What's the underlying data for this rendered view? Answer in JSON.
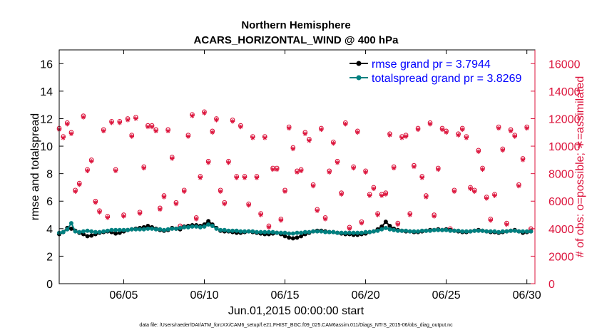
{
  "chart_data": {
    "type": "line",
    "title": "Northern Hemisphere",
    "subtitle": "ACARS_HORIZONTAL_WIND @ 400 hPa",
    "xlabel": "Jun.01,2015 00:00:00 start",
    "ylabel": "rmse and totalspread",
    "y2label": "# of obs: o=possible; ∗=assimilated",
    "xlim": [
      1,
      30.5
    ],
    "ylim": [
      0,
      17
    ],
    "y2lim": [
      0,
      17000
    ],
    "yticks": [
      "0",
      "2",
      "4",
      "6",
      "8",
      "10",
      "12",
      "14",
      "16"
    ],
    "y2ticks": [
      "0",
      "2000",
      "4000",
      "6000",
      "8000",
      "10000",
      "12000",
      "14000",
      "16000"
    ],
    "xticks": [
      {
        "label": "06/05",
        "day": 5
      },
      {
        "label": "06/10",
        "day": 10
      },
      {
        "label": "06/15",
        "day": 15
      },
      {
        "label": "06/20",
        "day": 20
      },
      {
        "label": "06/25",
        "day": 25
      },
      {
        "label": "06/30",
        "day": 30
      }
    ],
    "legend_position": "top-right",
    "series": [
      {
        "name": "rmse grand pr = 3.7944",
        "color": "#000000",
        "axis": "left",
        "marker": "dot",
        "x_start": 1,
        "x_step": 0.25,
        "values": [
          3.6,
          3.75,
          4.05,
          4.0,
          3.85,
          3.7,
          3.6,
          3.45,
          3.5,
          3.6,
          3.7,
          3.75,
          3.8,
          3.75,
          3.65,
          3.7,
          3.8,
          3.9,
          3.95,
          4.0,
          4.05,
          4.1,
          4.2,
          4.1,
          4.0,
          3.9,
          3.85,
          3.9,
          4.05,
          4.0,
          3.95,
          4.15,
          4.2,
          4.25,
          4.25,
          4.2,
          4.3,
          4.55,
          4.3,
          4.05,
          3.85,
          3.8,
          3.8,
          3.75,
          3.7,
          3.7,
          3.75,
          3.8,
          3.75,
          3.7,
          3.65,
          3.6,
          3.6,
          3.65,
          3.7,
          3.6,
          3.45,
          3.35,
          3.3,
          3.35,
          3.45,
          3.6,
          3.7,
          3.8,
          3.85,
          3.85,
          3.8,
          3.75,
          3.75,
          3.7,
          3.65,
          3.6,
          3.6,
          3.55,
          3.55,
          3.6,
          3.65,
          3.75,
          3.8,
          3.95,
          4.15,
          4.5,
          4.2,
          4.0,
          3.9,
          3.85,
          3.8,
          3.8,
          3.75,
          3.75,
          3.8,
          3.85,
          3.9,
          3.9,
          3.95,
          3.9,
          3.95,
          3.9,
          3.85,
          3.8,
          3.75,
          3.75,
          3.8,
          3.85,
          3.9,
          3.85,
          3.8,
          3.75,
          3.75,
          3.7,
          3.75,
          3.8,
          3.85,
          3.9,
          3.8,
          3.7,
          3.75,
          3.8
        ]
      },
      {
        "name": "totalspread grand pr = 3.8269",
        "color": "#008080",
        "axis": "left",
        "marker": "dot",
        "x_start": 1,
        "x_step": 0.25,
        "values": [
          3.7,
          3.75,
          3.95,
          4.4,
          3.8,
          3.75,
          3.8,
          3.85,
          3.8,
          3.75,
          3.75,
          3.8,
          3.85,
          3.9,
          3.9,
          3.9,
          3.9,
          3.9,
          3.95,
          3.95,
          3.95,
          3.95,
          4.0,
          4.0,
          3.95,
          3.95,
          3.9,
          3.95,
          4.0,
          4.0,
          4.05,
          4.1,
          4.1,
          4.15,
          4.15,
          4.1,
          4.15,
          4.3,
          4.2,
          4.0,
          3.9,
          3.9,
          3.85,
          3.85,
          3.85,
          3.8,
          3.8,
          3.8,
          3.8,
          3.75,
          3.75,
          3.75,
          3.75,
          3.75,
          3.7,
          3.7,
          3.7,
          3.65,
          3.65,
          3.7,
          3.7,
          3.75,
          3.75,
          3.8,
          3.8,
          3.8,
          3.75,
          3.75,
          3.75,
          3.7,
          3.7,
          3.7,
          3.7,
          3.7,
          3.7,
          3.7,
          3.75,
          3.75,
          3.8,
          3.85,
          3.95,
          4.05,
          3.95,
          3.9,
          3.85,
          3.85,
          3.85,
          3.8,
          3.8,
          3.8,
          3.85,
          3.85,
          3.85,
          3.9,
          3.9,
          3.9,
          3.9,
          3.85,
          3.85,
          3.85,
          3.8,
          3.8,
          3.8,
          3.85,
          3.85,
          3.85,
          3.8,
          3.8,
          3.8,
          3.75,
          3.8,
          3.8,
          3.85,
          3.85,
          3.8,
          3.8,
          3.8,
          3.8
        ]
      },
      {
        "name": "obs possible",
        "color": "#dc143c",
        "axis": "right",
        "marker": "circle",
        "x_start": 1,
        "x_step": 0.25,
        "values": [
          11300,
          10700,
          11700,
          11000,
          6800,
          7300,
          12200,
          8300,
          9000,
          6000,
          5300,
          11200,
          4900,
          11800,
          8300,
          11800,
          5000,
          12000,
          10800,
          12100,
          5200,
          8500,
          11500,
          11500,
          11200,
          5500,
          6400,
          11200,
          9200,
          5900,
          4200,
          6800,
          10800,
          12300,
          4800,
          7800,
          12500,
          8900,
          11100,
          12000,
          6800,
          5900,
          8900,
          11900,
          7800,
          11500,
          7800,
          5800,
          10700,
          7800,
          5100,
          10700,
          4200,
          8400,
          8400,
          4700,
          6800,
          11400,
          9900,
          8200,
          8300,
          11000,
          10500,
          7200,
          5400,
          11300,
          4800,
          8200,
          10300,
          8900,
          6600,
          11700,
          4100,
          8500,
          11100,
          4500,
          8200,
          6500,
          7000,
          5100,
          6500,
          6600,
          10900,
          8500,
          4400,
          10700,
          10800,
          5100,
          8600,
          11300,
          7800,
          6400,
          11700,
          5000,
          8400,
          11300,
          11100,
          4000,
          6800,
          10900,
          11300,
          10700,
          7000,
          6800,
          9700,
          8400,
          6300,
          4700,
          6500,
          11400,
          9800,
          4400,
          11200,
          10800,
          7200,
          9100,
          11400,
          4000
        ]
      },
      {
        "name": "obs assimilated",
        "color": "#dc143c",
        "axis": "right",
        "marker": "asterisk",
        "x_start": 1,
        "x_step": 0.25,
        "values": [
          11200,
          10600,
          11600,
          10900,
          6700,
          7200,
          12100,
          8200,
          8900,
          5900,
          5200,
          11100,
          4800,
          11700,
          8200,
          11700,
          4900,
          11900,
          10700,
          12000,
          5100,
          8400,
          11400,
          11400,
          11100,
          5400,
          6300,
          11100,
          9100,
          5800,
          4100,
          6700,
          10700,
          12200,
          4700,
          7700,
          12400,
          8800,
          11000,
          11900,
          6700,
          5800,
          8800,
          11800,
          7700,
          11400,
          7700,
          5700,
          10600,
          7700,
          5000,
          10600,
          4100,
          8300,
          8300,
          4600,
          6700,
          11300,
          9800,
          8100,
          8200,
          10900,
          10400,
          7100,
          5300,
          11200,
          4700,
          8100,
          10200,
          8800,
          6500,
          11600,
          4000,
          8400,
          11000,
          4400,
          8100,
          6400,
          6900,
          5000,
          6400,
          6500,
          10800,
          8400,
          4300,
          10600,
          10700,
          5000,
          8500,
          11200,
          7700,
          6300,
          11600,
          4900,
          8300,
          11200,
          11000,
          3900,
          6700,
          10800,
          11200,
          10600,
          6900,
          6700,
          9600,
          8300,
          6200,
          4600,
          6400,
          11300,
          9700,
          4300,
          11100,
          10700,
          7100,
          9000,
          11300,
          3900
        ]
      }
    ]
  },
  "footer": "data file: /Users/raeder/DAI/ATM_forcXX/CAM6_setup/f.e21.FHIST_BGC.f09_025.CAM6assim.011/Diags_NTrS_2015-06/obs_diag_output.nc",
  "colors": {
    "left_axis": "#000000",
    "right_axis": "#dc143c",
    "legend_text": "#0000ff"
  }
}
